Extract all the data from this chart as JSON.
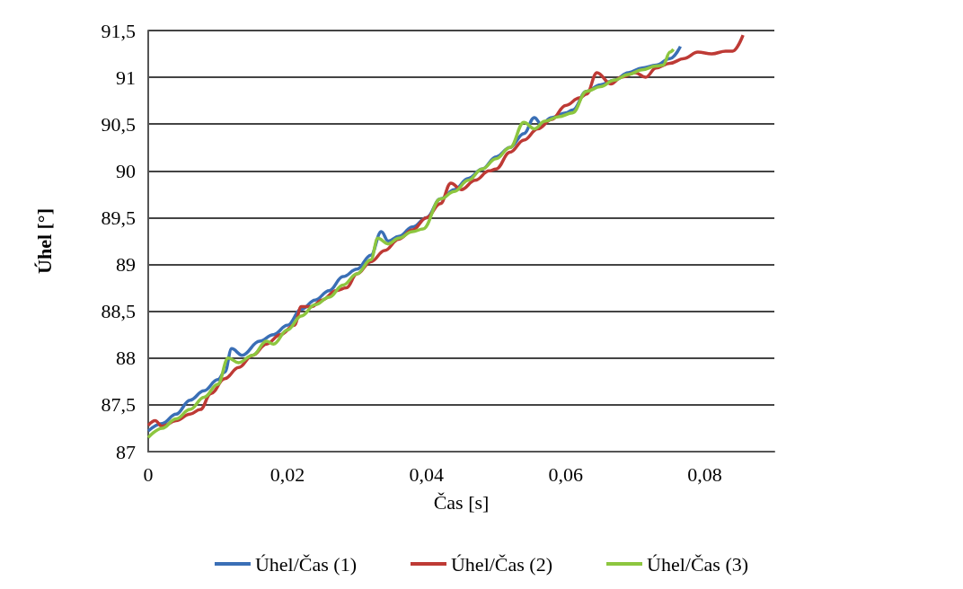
{
  "chart_data": {
    "type": "line",
    "xlabel": "Čas [s]",
    "ylabel": "Úhel [°]",
    "xlim": [
      0,
      0.09
    ],
    "xticks": [
      0,
      {
        "value": 0.02,
        "label": "0,02"
      },
      {
        "value": 0.04,
        "label": "0,04"
      },
      {
        "value": 0.06,
        "label": "0,06"
      },
      {
        "value": 0.08,
        "label": "0,08"
      }
    ],
    "ylim": [
      87,
      91.5
    ],
    "yticks": [
      87,
      {
        "value": 87.5,
        "label": "87,5"
      },
      88,
      {
        "value": 88.5,
        "label": "88,5"
      },
      89,
      {
        "value": 89.5,
        "label": "89,5"
      },
      90,
      {
        "value": 90.5,
        "label": "90,5"
      },
      91,
      {
        "value": 91.5,
        "label": "91,5"
      }
    ],
    "grid": "y",
    "legend": "bottom",
    "marker": "none",
    "line_style": "solid",
    "series": [
      {
        "name": "Úhel/Čas (1)",
        "color": "#3a6fb6",
        "x": [
          0,
          0.002,
          0.004,
          0.006,
          0.008,
          0.01,
          0.011,
          0.012,
          0.0135,
          0.016,
          0.018,
          0.02,
          0.022,
          0.024,
          0.026,
          0.028,
          0.03,
          0.032,
          0.0335,
          0.0345,
          0.036,
          0.038,
          0.04,
          0.042,
          0.044,
          0.046,
          0.048,
          0.05,
          0.052,
          0.054,
          0.0555,
          0.0565,
          0.058,
          0.06,
          0.061,
          0.063,
          0.065,
          0.067,
          0.069,
          0.071,
          0.073,
          0.075,
          0.0765
        ],
        "values": [
          87.22,
          87.3,
          87.4,
          87.55,
          87.65,
          87.77,
          87.85,
          88.1,
          88.03,
          88.18,
          88.25,
          88.35,
          88.52,
          88.62,
          88.72,
          88.87,
          88.95,
          89.1,
          89.35,
          89.25,
          89.3,
          89.4,
          89.5,
          89.7,
          89.8,
          89.92,
          90.02,
          90.15,
          90.25,
          90.4,
          90.57,
          90.5,
          90.57,
          90.62,
          90.65,
          90.85,
          90.92,
          90.97,
          91.05,
          91.1,
          91.13,
          91.2,
          91.33
        ]
      },
      {
        "name": "Úhel/Čas (2)",
        "color": "#be3a35",
        "x": [
          0,
          0.001,
          0.002,
          0.004,
          0.006,
          0.0075,
          0.009,
          0.011,
          0.013,
          0.015,
          0.017,
          0.019,
          0.021,
          0.022,
          0.0235,
          0.025,
          0.027,
          0.0285,
          0.03,
          0.032,
          0.034,
          0.036,
          0.038,
          0.04,
          0.042,
          0.0435,
          0.045,
          0.047,
          0.049,
          0.05,
          0.052,
          0.054,
          0.056,
          0.058,
          0.06,
          0.062,
          0.063,
          0.0645,
          0.0665,
          0.068,
          0.07,
          0.0715,
          0.073,
          0.075,
          0.077,
          0.079,
          0.081,
          0.083,
          0.084,
          0.0855
        ],
        "values": [
          87.28,
          87.33,
          87.27,
          87.33,
          87.4,
          87.45,
          87.62,
          87.78,
          87.9,
          88.03,
          88.15,
          88.25,
          88.35,
          88.55,
          88.55,
          88.62,
          88.72,
          88.75,
          88.9,
          89.03,
          89.15,
          89.27,
          89.37,
          89.5,
          89.65,
          89.87,
          89.8,
          89.9,
          90,
          90.02,
          90.2,
          90.33,
          90.45,
          90.55,
          90.7,
          90.78,
          90.82,
          91.05,
          90.93,
          91,
          91.05,
          91,
          91.1,
          91.15,
          91.2,
          91.27,
          91.25,
          91.28,
          91.28,
          91.45
        ]
      },
      {
        "name": "Úhel/Čas (3)",
        "color": "#8dc63f",
        "x": [
          0,
          0.002,
          0.004,
          0.006,
          0.008,
          0.01,
          0.0115,
          0.013,
          0.015,
          0.017,
          0.018,
          0.02,
          0.022,
          0.024,
          0.026,
          0.028,
          0.03,
          0.032,
          0.033,
          0.0345,
          0.036,
          0.038,
          0.0395,
          0.042,
          0.044,
          0.046,
          0.048,
          0.05,
          0.052,
          0.054,
          0.0555,
          0.057,
          0.059,
          0.061,
          0.063,
          0.065,
          0.067,
          0.069,
          0.071,
          0.073,
          0.074,
          0.075,
          0.0755
        ],
        "values": [
          87.15,
          87.25,
          87.35,
          87.45,
          87.58,
          87.72,
          88,
          87.95,
          88.03,
          88.18,
          88.15,
          88.3,
          88.45,
          88.57,
          88.65,
          88.78,
          88.9,
          89.05,
          89.28,
          89.22,
          89.28,
          89.35,
          89.38,
          89.7,
          89.78,
          89.9,
          90.02,
          90.13,
          90.25,
          90.52,
          90.45,
          90.53,
          90.58,
          90.62,
          90.85,
          90.9,
          90.97,
          91.03,
          91.08,
          91.12,
          91.13,
          91.27,
          91.3
        ]
      }
    ]
  }
}
